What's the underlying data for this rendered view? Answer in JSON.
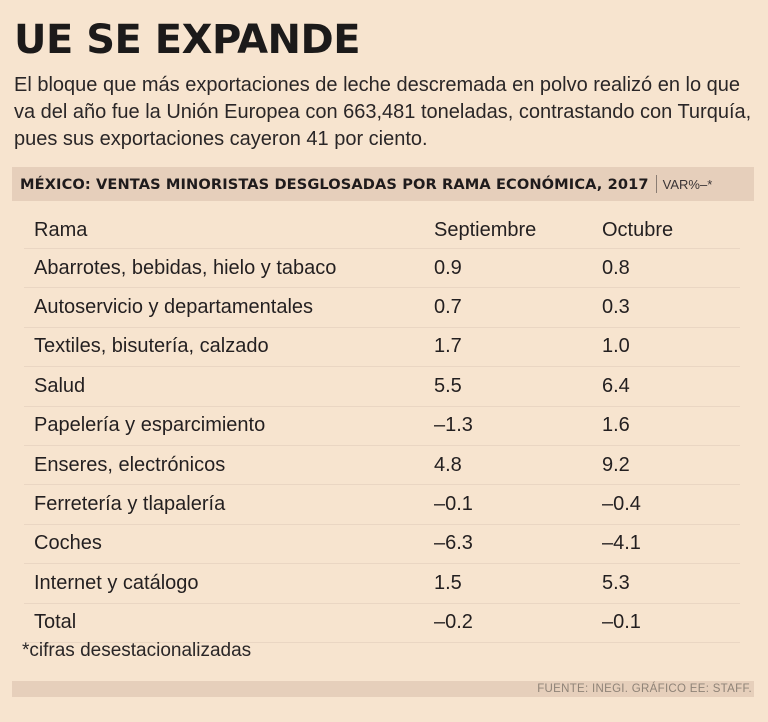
{
  "header": {
    "title": "UE SE EXPANDE",
    "subtitle": "El bloque que más exportaciones de leche descremada en polvo realizó en lo que va del año fue la Unión Europea con 663,481 toneladas, contrastando con Turquía, pues sus exportaciones cayeron 41 por ciento."
  },
  "chart_data": {
    "type": "table",
    "title": "MÉXICO: VENTAS MINORISTAS DESGLOSADAS POR RAMA ECONÓMICA, 2017",
    "unit": "VAR%–*",
    "columns": [
      "Rama",
      "Septiembre",
      "Octubre"
    ],
    "rows": [
      [
        "Abarrotes, bebidas, hielo y tabaco",
        "0.9",
        "0.8"
      ],
      [
        "Autoservicio y departamentales",
        "0.7",
        "0.3"
      ],
      [
        "Textiles, bisutería, calzado",
        "1.7",
        "1.0"
      ],
      [
        "Salud",
        "5.5",
        "6.4"
      ],
      [
        "Papelería y esparcimiento",
        "–1.3",
        "1.6"
      ],
      [
        "Enseres, electrónicos",
        "4.8",
        "9.2"
      ],
      [
        "Ferretería y tlapalería",
        "–0.1",
        "–0.4"
      ],
      [
        "Coches",
        "–6.3",
        "–4.1"
      ],
      [
        "Internet y catálogo",
        "1.5",
        "5.3"
      ],
      [
        "Total",
        "–0.2",
        "–0.1"
      ]
    ],
    "footnote": "*cifras desestacionalizadas",
    "source": "FUENTE: INEGI.  GRÁFICO EE: STAFF."
  },
  "colors": {
    "background": "#f7e4cf",
    "band": "#e6cfbb",
    "text": "#231f20",
    "source_text": "#8f8377"
  }
}
